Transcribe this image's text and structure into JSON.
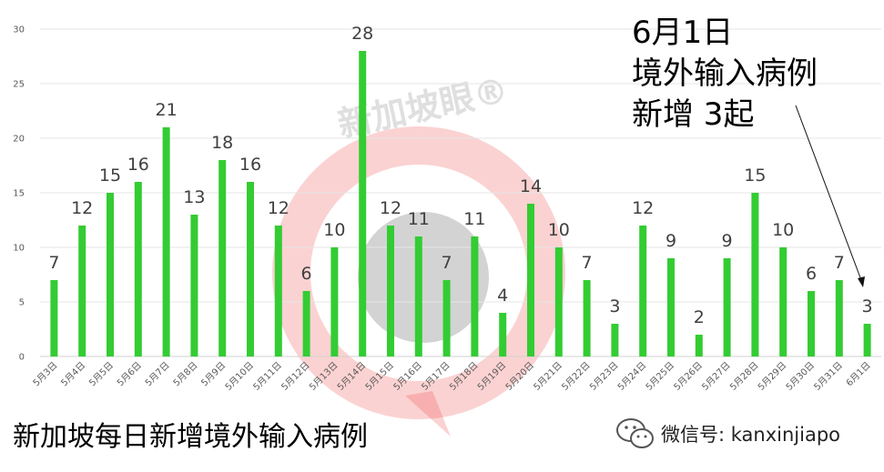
{
  "chart_data": {
    "type": "bar",
    "categories": [
      "5月3日",
      "5月4日",
      "5月5日",
      "5月6日",
      "5月7日",
      "5月8日",
      "5月9日",
      "5月10日",
      "5月11日",
      "5月12日",
      "5月13日",
      "5月14日",
      "5月15日",
      "5月16日",
      "5月17日",
      "5月18日",
      "5月19日",
      "5月20日",
      "5月21日",
      "5月22日",
      "5月23日",
      "5月24日",
      "5月25日",
      "5月26日",
      "5月27日",
      "5月28日",
      "5月29日",
      "5月30日",
      "5月31日",
      "6月1日"
    ],
    "values": [
      7,
      12,
      15,
      16,
      21,
      13,
      18,
      16,
      12,
      6,
      10,
      28,
      12,
      11,
      7,
      11,
      4,
      14,
      10,
      7,
      3,
      12,
      9,
      2,
      9,
      15,
      10,
      6,
      7,
      3
    ],
    "yticks": [
      0,
      5,
      10,
      15,
      20,
      25,
      30
    ],
    "ylim": [
      0,
      30
    ],
    "grid": true,
    "bar_color": "#33cc33",
    "title": "新加坡每日新增境外输入病例",
    "annotation": [
      "6月1日",
      "境外输入病例",
      "新增 3起"
    ]
  },
  "watermark": {
    "text": "新加坡眼®",
    "accent": "#ee3333"
  },
  "footer": {
    "wechat": "微信号: kanxinjiapo"
  }
}
